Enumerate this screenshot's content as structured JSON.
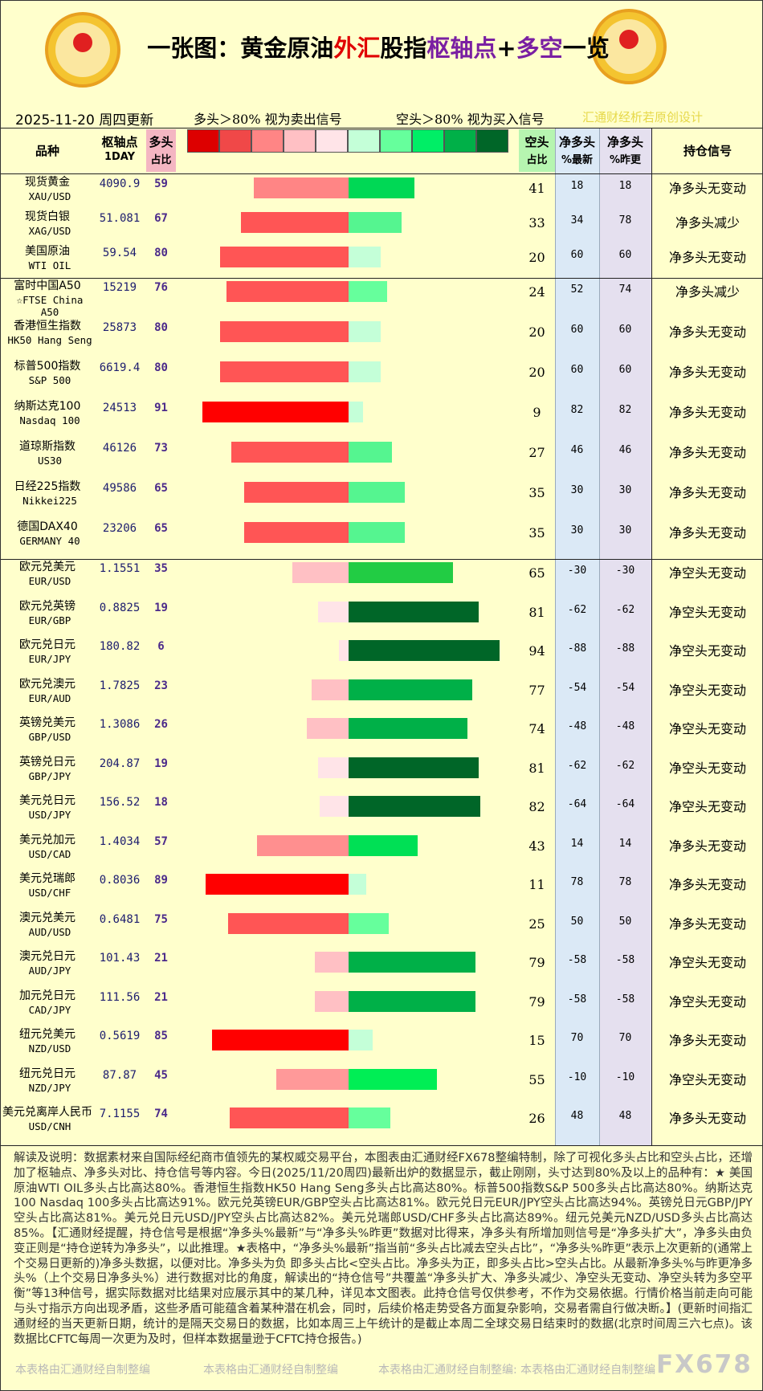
{
  "header": {
    "title_parts": [
      {
        "text": "一张图：黄金原油",
        "color": "#000000"
      },
      {
        "text": "外汇",
        "color": "#e00000"
      },
      {
        "text": "股指",
        "color": "#000000"
      },
      {
        "text": "枢轴点",
        "color": "#7a1fa2"
      },
      {
        "text": "+",
        "color": "#000000"
      },
      {
        "text": "多空",
        "color": "#7a1fa2"
      },
      {
        "text": "一览",
        "color": "#000000"
      }
    ],
    "date": "2025-11-20 周四更新",
    "long_note": "多头＞80% 视为卖出信号",
    "short_note": "空头＞80% 视为买入信号",
    "credit": "汇通财经析若原创设计",
    "legend_colors": [
      "#dd0000",
      "#f04848",
      "#ff8585",
      "#ffc0c4",
      "#ffe4e8",
      "#c4ffd8",
      "#66ff9c",
      "#00ee66",
      "#00b048",
      "#006628"
    ]
  },
  "table": {
    "columns": {
      "name": [
        "品种"
      ],
      "pivot": [
        "枢轴点",
        "1DAY"
      ],
      "long": [
        "多头",
        "占比"
      ],
      "short": [
        "空头",
        "占比"
      ],
      "net_latest": [
        "净多头",
        "%最新"
      ],
      "net_prev": [
        "净多头",
        "%昨更"
      ],
      "signal": [
        "持仓信号"
      ]
    },
    "groups": [
      {
        "rows": [
          {
            "name": "现货黄金",
            "code": "XAU/USD",
            "pivot": 4090.9,
            "long": 59,
            "short": 41,
            "net_latest": 18,
            "net_prev": 18,
            "signal": "净多头无变动",
            "long_color": "#ff8585",
            "short_color": "#00d855"
          },
          {
            "name": "现货白银",
            "code": "XAG/USD",
            "pivot": 51.081,
            "long": 67,
            "short": 33,
            "net_latest": 34,
            "net_prev": 78,
            "signal": "净多头减少",
            "long_color": "#ff5555",
            "short_color": "#55f590"
          },
          {
            "name": "美国原油",
            "code": "WTI OIL",
            "pivot": 59.54,
            "long": 80,
            "short": 20,
            "net_latest": 60,
            "net_prev": 60,
            "signal": "净多头无变动",
            "long_color": "#ff5555",
            "short_color": "#c4ffd8"
          }
        ]
      },
      {
        "rows": [
          {
            "name": "富时中国A50",
            "code": "☆FTSE China A50",
            "pivot": 15219,
            "long": 76,
            "short": 24,
            "net_latest": 52,
            "net_prev": 74,
            "signal": "净多头减少",
            "long_color": "#ff5555",
            "short_color": "#66ff9c"
          },
          {
            "name": "香港恒生指数",
            "code": "HK50 Hang Seng",
            "pivot": 25873,
            "long": 80,
            "short": 20,
            "net_latest": 60,
            "net_prev": 60,
            "signal": "净多头无变动",
            "long_color": "#ff5555",
            "short_color": "#c4ffd8"
          },
          {
            "name": "标普500指数",
            "code": "S&P 500",
            "pivot": 6619.4,
            "long": 80,
            "short": 20,
            "net_latest": 60,
            "net_prev": 60,
            "signal": "净多头无变动",
            "long_color": "#ff5555",
            "short_color": "#c4ffd8"
          },
          {
            "name": "纳斯达克100",
            "code": "Nasdaq 100",
            "pivot": 24513,
            "long": 91,
            "short": 9,
            "net_latest": 82,
            "net_prev": 82,
            "signal": "净多头无变动",
            "long_color": "#ff0000",
            "short_color": "#c4ffd8"
          },
          {
            "name": "道琼斯指数",
            "code": "US30",
            "pivot": 46126,
            "long": 73,
            "short": 27,
            "net_latest": 46,
            "net_prev": 46,
            "signal": "净多头无变动",
            "long_color": "#ff5555",
            "short_color": "#55f590"
          },
          {
            "name": "日经225指数",
            "code": "Nikkei225",
            "pivot": 49586,
            "long": 65,
            "short": 35,
            "net_latest": 30,
            "net_prev": 30,
            "signal": "净多头无变动",
            "long_color": "#ff5555",
            "short_color": "#55f590"
          },
          {
            "name": "德国DAX40",
            "code": "GERMANY 40",
            "pivot": 23206,
            "long": 65,
            "short": 35,
            "net_latest": 30,
            "net_prev": 30,
            "signal": "净多头无变动",
            "long_color": "#ff5555",
            "short_color": "#55f590"
          }
        ]
      },
      {
        "rows": [
          {
            "name": "欧元兑美元",
            "code": "EUR/USD",
            "pivot": 1.1551,
            "long": 35,
            "short": 65,
            "net_latest": -30,
            "net_prev": -30,
            "signal": "净空头无变动",
            "long_color": "#ffc0c4",
            "short_color": "#22cc44"
          },
          {
            "name": "欧元兑英镑",
            "code": "EUR/GBP",
            "pivot": 0.8825,
            "long": 19,
            "short": 81,
            "net_latest": -62,
            "net_prev": -62,
            "signal": "净空头无变动",
            "long_color": "#ffe4e8",
            "short_color": "#006628"
          },
          {
            "name": "欧元兑日元",
            "code": "EUR/JPY",
            "pivot": 180.82,
            "long": 6,
            "short": 94,
            "net_latest": -88,
            "net_prev": -88,
            "signal": "净空头无变动",
            "long_color": "#ffe4e8",
            "short_color": "#006628"
          },
          {
            "name": "欧元兑澳元",
            "code": "EUR/AUD",
            "pivot": 1.7825,
            "long": 23,
            "short": 77,
            "net_latest": -54,
            "net_prev": -54,
            "signal": "净空头无变动",
            "long_color": "#ffc0c4",
            "short_color": "#00b048"
          },
          {
            "name": "英镑兑美元",
            "code": "GBP/USD",
            "pivot": 1.3086,
            "long": 26,
            "short": 74,
            "net_latest": -48,
            "net_prev": -48,
            "signal": "净空头无变动",
            "long_color": "#ffc0c4",
            "short_color": "#00b048"
          },
          {
            "name": "英镑兑日元",
            "code": "GBP/JPY",
            "pivot": 204.87,
            "long": 19,
            "short": 81,
            "net_latest": -62,
            "net_prev": -62,
            "signal": "净空头无变动",
            "long_color": "#ffe4e8",
            "short_color": "#006628"
          },
          {
            "name": "美元兑日元",
            "code": "USD/JPY",
            "pivot": 156.52,
            "long": 18,
            "short": 82,
            "net_latest": -64,
            "net_prev": -64,
            "signal": "净空头无变动",
            "long_color": "#ffe4e8",
            "short_color": "#006628"
          },
          {
            "name": "美元兑加元",
            "code": "USD/CAD",
            "pivot": 1.4034,
            "long": 57,
            "short": 43,
            "net_latest": 14,
            "net_prev": 14,
            "signal": "净多头无变动",
            "long_color": "#ff8f8f",
            "short_color": "#00e055"
          },
          {
            "name": "美元兑瑞郎",
            "code": "USD/CHF",
            "pivot": 0.8036,
            "long": 89,
            "short": 11,
            "net_latest": 78,
            "net_prev": 78,
            "signal": "净多头无变动",
            "long_color": "#ff0000",
            "short_color": "#c4ffd8"
          },
          {
            "name": "澳元兑美元",
            "code": "AUD/USD",
            "pivot": 0.6481,
            "long": 75,
            "short": 25,
            "net_latest": 50,
            "net_prev": 50,
            "signal": "净多头无变动",
            "long_color": "#ff5555",
            "short_color": "#66ff9c"
          },
          {
            "name": "澳元兑日元",
            "code": "AUD/JPY",
            "pivot": 101.43,
            "long": 21,
            "short": 79,
            "net_latest": -58,
            "net_prev": -58,
            "signal": "净空头无变动",
            "long_color": "#ffc0c4",
            "short_color": "#00b048"
          },
          {
            "name": "加元兑日元",
            "code": "CAD/JPY",
            "pivot": 111.56,
            "long": 21,
            "short": 79,
            "net_latest": -58,
            "net_prev": -58,
            "signal": "净空头无变动",
            "long_color": "#ffc0c4",
            "short_color": "#00b048"
          },
          {
            "name": "纽元兑美元",
            "code": "NZD/USD",
            "pivot": 0.5619,
            "long": 85,
            "short": 15,
            "net_latest": 70,
            "net_prev": 70,
            "signal": "净多头无变动",
            "long_color": "#ff0000",
            "short_color": "#c4ffd8"
          },
          {
            "name": "纽元兑日元",
            "code": "NZD/JPY",
            "pivot": 87.87,
            "long": 45,
            "short": 55,
            "net_latest": -10,
            "net_prev": -10,
            "signal": "净空头无变动",
            "long_color": "#ff9999",
            "short_color": "#00ee55"
          },
          {
            "name": "美元兑离岸人民币",
            "code": "USD/CNH",
            "pivot": 7.1155,
            "long": 74,
            "short": 26,
            "net_latest": 48,
            "net_prev": 48,
            "signal": "净多头无变动",
            "long_color": "#ff5555",
            "short_color": "#66ff9c"
          }
        ]
      }
    ]
  },
  "footer": {
    "text": "解读及说明：数据素材来自国际经纪商市值领先的某权威交易平台，本图表由汇通财经FX678整编特制，除了可视化多头占比和空头占比，还增加了枢轴点、净多头对比、持仓信号等内容。今日(2025/11/20周四)最新出炉的数据显示，截止刚刚，头寸达到80%及以上的品种有：★ 美国原油WTI OIL多头占比高达80%。香港恒生指数HK50 Hang Seng多头占比高达80%。标普500指数S&P 500多头占比高达80%。纳斯达克100 Nasdaq 100多头占比高达91%。欧元兑英镑EUR/GBP空头占比高达81%。欧元兑日元EUR/JPY空头占比高达94%。英镑兑日元GBP/JPY空头占比高达81%。美元兑日元USD/JPY空头占比高达82%。美元兑瑞郎USD/CHF多头占比高达89%。纽元兑美元NZD/USD多头占比高达85%。【汇通财经提醒，持仓信号是根据“净多头%最新”与“净多头%昨更”数据对比得来，净多头有所增加则信号是“净多头扩大”，净多头由负变正则是“持仓逆转为净多头”，以此推理。★表格中，“净多头%最新”指当前“多头占比减去空头占比”，“净多头%昨更”表示上次更新的(通常上个交易日更新的)净多头数据，以便对比。净多头为负 即多头占比<空头占比。净多头为正，即多头占比>空头占比。从最新净多头%与昨更净多头%（上个交易日净多头%）进行数据对比的角度，解读出的“持仓信号”共覆盖“净多头扩大、净多头减少、净空头无变动、净空头转为多空平衡”等13种信号，据实际数据对比结果对应展示其中的某几种，详见本文图表。此持仓信号仅供参考，不作为交易依据。行情价格当前走向可能与头寸指示方向出现矛盾，这些矛盾可能蕴含着某种潜在机会，同时，后续价格走势受各方面复杂影响，交易者需自行做决断。】(更新时间指汇通财经的当天更新日期，统计的是隔天交易日的数据，比如本周三上午统计的是截止本周二全球交易日结束时的数据(北京时间周三六七点)。该数据比CFTC每周一次更为及时，但样本数据量逊于CFTC持仓报告。)",
    "marks": [
      "本表格由汇通财经自制整编",
      "本表格由汇通财经自制整编",
      "本表格由汇通财经自制整编: 本表格由汇通财经自制整编"
    ],
    "brand": "FX678"
  }
}
